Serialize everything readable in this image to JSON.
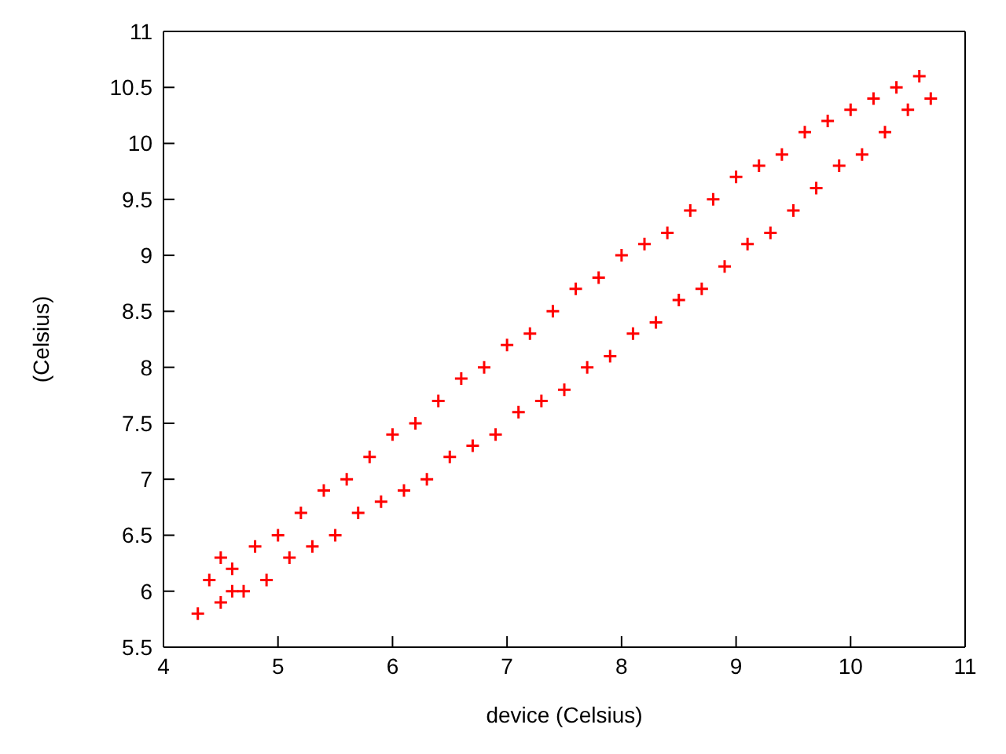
{
  "chart_data": {
    "type": "scatter",
    "xlabel": "device (Celsius)",
    "ylabel": "(Celsius)",
    "xlim": [
      4,
      11
    ],
    "ylim": [
      5.5,
      11
    ],
    "xticks": [
      4,
      5,
      6,
      7,
      8,
      9,
      10,
      11
    ],
    "yticks": [
      5.5,
      6,
      6.5,
      7,
      7.5,
      8,
      8.5,
      9,
      9.5,
      10,
      10.5,
      11
    ],
    "marker": "cross",
    "series": [
      {
        "color": "#ff0000",
        "x": [
          4.4,
          4.6,
          4.8,
          5.0,
          5.2,
          5.4,
          5.6,
          5.8,
          6.0,
          6.2,
          6.4,
          6.6,
          6.8,
          7.0,
          7.2,
          7.4,
          7.6,
          7.8,
          8.0,
          8.2,
          8.4,
          8.6,
          8.8,
          9.0,
          9.2,
          9.4,
          9.6,
          9.8,
          10.0,
          10.2,
          10.4,
          10.6,
          4.3,
          4.5,
          4.7,
          4.9,
          5.1,
          5.3,
          5.5,
          5.7,
          5.9,
          6.1,
          6.3,
          6.5,
          6.7,
          6.9,
          7.1,
          7.3,
          7.5,
          7.7,
          7.9,
          8.1,
          8.3,
          8.5,
          8.7,
          8.9,
          9.1,
          9.3,
          9.5,
          9.7,
          9.9,
          10.1,
          10.3,
          10.5,
          10.7,
          4.5,
          4.6
        ],
        "values": [
          6.1,
          6.2,
          6.4,
          6.5,
          6.7,
          6.9,
          7.0,
          7.2,
          7.4,
          7.5,
          7.7,
          7.9,
          8.0,
          8.2,
          8.3,
          8.5,
          8.7,
          8.8,
          9.0,
          9.1,
          9.2,
          9.4,
          9.5,
          9.7,
          9.8,
          9.9,
          10.1,
          10.2,
          10.3,
          10.4,
          10.5,
          10.6,
          5.8,
          5.9,
          6.0,
          6.1,
          6.3,
          6.4,
          6.5,
          6.7,
          6.8,
          6.9,
          7.0,
          7.2,
          7.3,
          7.4,
          7.6,
          7.7,
          7.8,
          8.0,
          8.1,
          8.3,
          8.4,
          8.6,
          8.7,
          8.9,
          9.1,
          9.2,
          9.4,
          9.6,
          9.8,
          9.9,
          10.1,
          10.3,
          10.4,
          6.3,
          6.0
        ]
      }
    ]
  }
}
